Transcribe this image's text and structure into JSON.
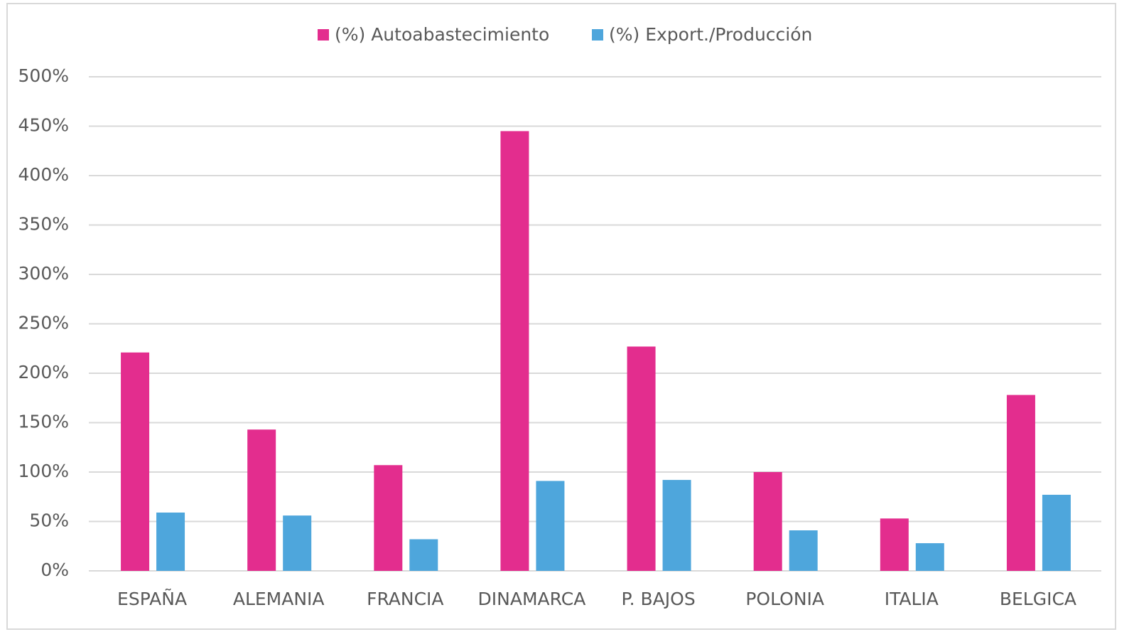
{
  "chart_data": {
    "type": "bar",
    "categories": [
      "ESPAÑA",
      "ALEMANIA",
      "FRANCIA",
      "DINAMARCA",
      "P. BAJOS",
      "POLONIA",
      "ITALIA",
      "BELGICA"
    ],
    "series": [
      {
        "name": "(%) Autoabastecimiento",
        "color": "#e32d8e",
        "values": [
          221,
          143,
          107,
          445,
          227,
          100,
          53,
          178
        ]
      },
      {
        "name": "(%) Export./Producción",
        "color": "#4ea6dc",
        "values": [
          59,
          56,
          32,
          91,
          92,
          41,
          28,
          77
        ]
      }
    ],
    "ylim": [
      0,
      500
    ],
    "yticks": [
      {
        "value": 0,
        "label": "0%"
      },
      {
        "value": 50,
        "label": "50%"
      },
      {
        "value": 100,
        "label": "100%"
      },
      {
        "value": 150,
        "label": "150%"
      },
      {
        "value": 200,
        "label": "200%"
      },
      {
        "value": 250,
        "label": "250%"
      },
      {
        "value": 300,
        "label": "300%"
      },
      {
        "value": 350,
        "label": "350%"
      },
      {
        "value": 400,
        "label": "400%"
      },
      {
        "value": 450,
        "label": "450%"
      },
      {
        "value": 500,
        "label": "500%"
      }
    ],
    "grid": true,
    "legend": "top"
  }
}
